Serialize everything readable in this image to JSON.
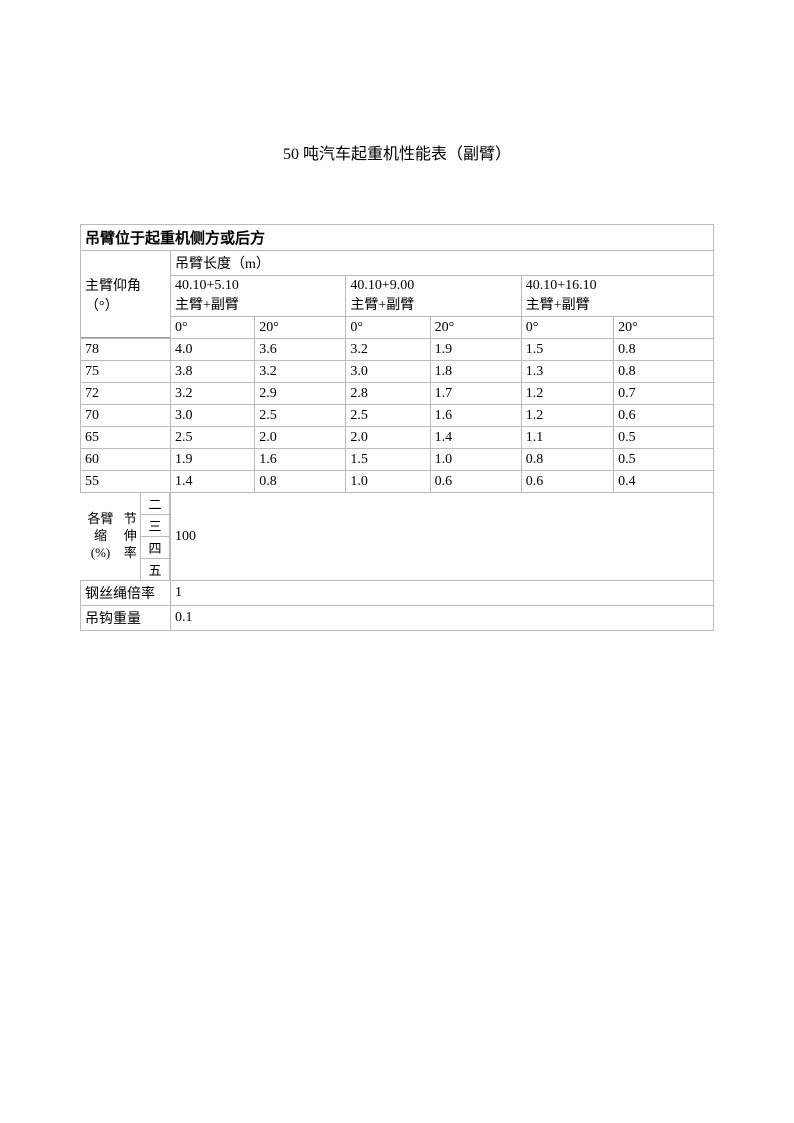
{
  "title": "50 吨汽车起重机性能表（副臂）",
  "table": {
    "type": "table",
    "border_color": "#bbbbbb",
    "background_color": "#ffffff",
    "text_color": "#000000",
    "font_size": 14,
    "header": "吊臂位于起重机侧方或后方",
    "row_leader_label": "主臂仰角（°）",
    "col_header_label": "吊臂长度（m）",
    "diag_line_color": "#5fb3d9",
    "arm_groups": [
      {
        "length": "40.10+5.10",
        "sub": "主臂+副臂"
      },
      {
        "length": "40.10+9.00",
        "sub": "主臂+副臂"
      },
      {
        "length": "40.10+16.10",
        "sub": "主臂+副臂"
      }
    ],
    "angle_headers": [
      "0°",
      "20°",
      "0°",
      "20°",
      "0°",
      "20°"
    ],
    "data_rows": [
      {
        "angle": "78",
        "values": [
          "4.0",
          "3.6",
          "3.2",
          "1.9",
          "1.5",
          "0.8"
        ]
      },
      {
        "angle": "75",
        "values": [
          "3.8",
          "3.2",
          "3.0",
          "1.8",
          "1.3",
          "0.8"
        ]
      },
      {
        "angle": "72",
        "values": [
          "3.2",
          "2.9",
          "2.8",
          "1.7",
          "1.2",
          "0.7"
        ]
      },
      {
        "angle": "70",
        "values": [
          "3.0",
          "2.5",
          "2.5",
          "1.6",
          "1.2",
          "0.6"
        ]
      },
      {
        "angle": "65",
        "values": [
          "2.5",
          "2.0",
          "2.0",
          "1.4",
          "1.1",
          "0.5"
        ]
      },
      {
        "angle": "60",
        "values": [
          "1.9",
          "1.6",
          "1.5",
          "1.0",
          "0.8",
          "0.5"
        ]
      },
      {
        "angle": "55",
        "values": [
          "1.4",
          "0.8",
          "1.0",
          "0.6",
          "0.6",
          "0.4"
        ]
      }
    ],
    "ext_section": {
      "label_col1": "各臂缩 (%)",
      "label_col2": "节伸率",
      "inner_labels": [
        "二",
        "三",
        "四",
        "五"
      ],
      "value": "100"
    },
    "wire_rope": {
      "label": "钢丝绳倍率",
      "value": "1"
    },
    "hook_weight": {
      "label": "吊钩重量",
      "value": "0.1"
    }
  }
}
